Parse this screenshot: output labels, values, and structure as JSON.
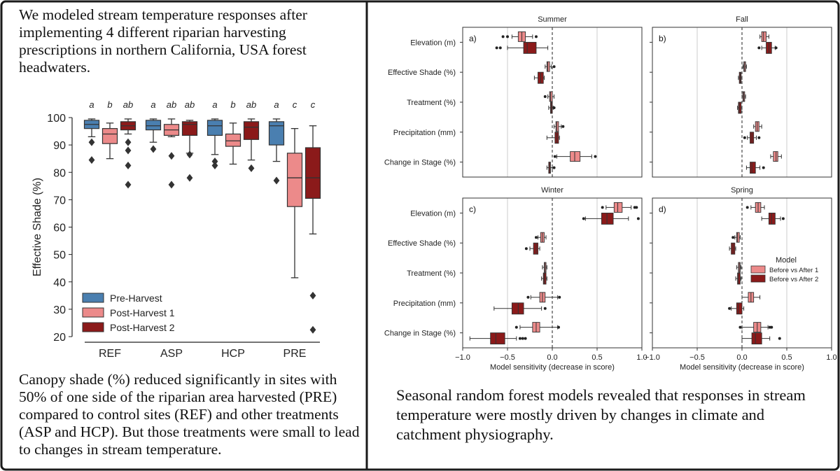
{
  "intro_text": "We modeled stream temperature responses after implementing 4 different riparian harvesting prescriptions in northern California, USA forest headwaters.",
  "left_caption": "Canopy shade (%) reduced significantly in sites with 50% of one side of the riparian area harvested (PRE) compared to control sites (REF) and other treatments (ASP and HCP). But those treatments were small to lead to changes in stream temperature.",
  "right_caption": "Seasonal random forest models revealed that responses in stream temperature were mostly driven by changes in climate and catchment physiography.",
  "colors": {
    "border": "#1a1a1a",
    "pre_harvest": "#4a7fb0",
    "post_harvest_1": "#ec8a8a",
    "post_harvest_2": "#8b1a1a",
    "median_line": "#333333",
    "grid": "#cccccc"
  },
  "chart_data": [
    {
      "type": "box",
      "ylabel": "Effective Shade (%)",
      "xlabel": "",
      "ylim": [
        20,
        100
      ],
      "yticks": [
        20,
        30,
        40,
        50,
        60,
        70,
        80,
        90,
        100
      ],
      "categories": [
        "REF",
        "ASP",
        "HCP",
        "PRE"
      ],
      "legend_position": "lower-left",
      "series_names": [
        "Pre-Harvest",
        "Post-Harvest 1",
        "Post-Harvest 2"
      ],
      "significance_letters": [
        [
          "a",
          "b",
          "ab"
        ],
        [
          "a",
          "ab",
          "ab"
        ],
        [
          "a",
          "b",
          "ab"
        ],
        [
          "a",
          "c",
          "c"
        ]
      ],
      "boxes": [
        [
          {
            "min": 93,
            "q1": 96,
            "median": 97.5,
            "q3": 99,
            "max": 99.5,
            "outliers": [
              91,
              84.5
            ]
          },
          {
            "min": 85,
            "q1": 90.5,
            "median": 94,
            "q3": 96,
            "max": 98,
            "outliers": []
          },
          {
            "min": 94,
            "q1": 95.5,
            "median": 97,
            "q3": 98.5,
            "max": 99.5,
            "outliers": [
              91,
              88,
              82.5,
              75.5
            ]
          }
        ],
        [
          {
            "min": 91,
            "q1": 95.5,
            "median": 97,
            "q3": 99,
            "max": 99.5,
            "outliers": [
              88.5
            ]
          },
          {
            "min": 93,
            "q1": 93.5,
            "median": 95.5,
            "q3": 97.5,
            "max": 99.5,
            "outliers": [
              86,
              75.5
            ]
          },
          {
            "min": 87,
            "q1": 93.5,
            "median": 97.5,
            "q3": 98.5,
            "max": 99,
            "outliers": [
              86.5,
              78
            ]
          }
        ],
        [
          {
            "min": 86.5,
            "q1": 93.5,
            "median": 97,
            "q3": 99,
            "max": 99.5,
            "outliers": [
              84,
              82.5
            ]
          },
          {
            "min": 83,
            "q1": 89.5,
            "median": 91.5,
            "q3": 94,
            "max": 98,
            "outliers": []
          },
          {
            "min": 84.5,
            "q1": 92,
            "median": 96.5,
            "q3": 98.5,
            "max": 99.5,
            "outliers": [
              81.5
            ]
          }
        ],
        [
          {
            "min": 84,
            "q1": 90,
            "median": 97,
            "q3": 98.5,
            "max": 99.5,
            "outliers": [
              77
            ]
          },
          {
            "min": 41.5,
            "q1": 67.5,
            "median": 78,
            "q3": 87,
            "max": 96,
            "outliers": []
          },
          {
            "min": 57.5,
            "q1": 70.5,
            "median": 78,
            "q3": 89,
            "max": 97,
            "outliers": [
              35,
              22.5
            ]
          }
        ]
      ]
    },
    {
      "type": "box",
      "xlabel": "Model sensitivity (decrease in score)",
      "xlim": [
        -1.0,
        1.0
      ],
      "xticks": [
        -1.0,
        -0.5,
        0.0,
        0.5,
        1.0
      ],
      "xticklabels": [
        "−1.0",
        "−0.5",
        "0.0",
        "0.5",
        "1.0"
      ],
      "features": [
        "Elevation (m)",
        "Effective Shade (%)",
        "Treatment (%)",
        "Precipitation (mm)",
        "Change in Stage (%)"
      ],
      "legend_title": "Model",
      "series_names": [
        "Before vs After 1",
        "Before vs After 2"
      ],
      "legend_position": "center-right of Spring panel",
      "panels": [
        {
          "title": "Summer",
          "letter": "a)",
          "boxes": [
            [
              {
                "min": -0.45,
                "q1": -0.38,
                "median": -0.34,
                "q3": -0.3,
                "max": -0.22,
                "outliers": [
                  -0.55,
                  -0.5,
                  -0.18
                ]
              },
              {
                "min": -0.5,
                "q1": -0.32,
                "median": -0.28,
                "q3": -0.18,
                "max": -0.05,
                "outliers": [
                  -0.62,
                  -0.58
                ]
              }
            ],
            [
              {
                "min": -0.08,
                "q1": -0.06,
                "median": -0.05,
                "q3": -0.03,
                "max": -0.01,
                "outliers": [
                  0.02
                ]
              },
              {
                "min": -0.2,
                "q1": -0.16,
                "median": -0.13,
                "q3": -0.1,
                "max": -0.09,
                "outliers": []
              }
            ],
            [
              {
                "min": -0.05,
                "q1": -0.03,
                "median": -0.02,
                "q3": 0.0,
                "max": 0.02,
                "outliers": [
                  -0.08
                ]
              },
              {
                "min": -0.04,
                "q1": -0.02,
                "median": -0.01,
                "q3": 0.0,
                "max": 0.01,
                "outliers": [
                  0.02
                ]
              }
            ],
            [
              {
                "min": 0.02,
                "q1": 0.04,
                "median": 0.05,
                "q3": 0.07,
                "max": 0.1,
                "outliers": [
                  0.12
                ]
              },
              {
                "min": -0.06,
                "q1": 0.03,
                "median": 0.05,
                "q3": 0.07,
                "max": 0.08,
                "outliers": []
              }
            ],
            [
              {
                "min": 0.05,
                "q1": 0.2,
                "median": 0.25,
                "q3": 0.31,
                "max": 0.44,
                "outliers": [
                  0.03,
                  0.48
                ]
              },
              {
                "min": -0.06,
                "q1": -0.04,
                "median": -0.03,
                "q3": -0.02,
                "max": 0.0,
                "outliers": [
                  0.02
                ]
              }
            ]
          ]
        },
        {
          "title": "Fall",
          "letter": "b)",
          "boxes": [
            [
              {
                "min": 0.2,
                "q1": 0.22,
                "median": 0.24,
                "q3": 0.27,
                "max": 0.3,
                "outliers": []
              },
              {
                "min": 0.22,
                "q1": 0.27,
                "median": 0.3,
                "q3": 0.33,
                "max": 0.37,
                "outliers": [
                  0.19,
                  0.38
                ]
              }
            ],
            [
              {
                "min": 0.01,
                "q1": 0.02,
                "median": 0.03,
                "q3": 0.04,
                "max": 0.05,
                "outliers": []
              },
              {
                "min": -0.04,
                "q1": -0.03,
                "median": -0.02,
                "q3": -0.01,
                "max": 0.0,
                "outliers": []
              }
            ],
            [
              {
                "min": 0.0,
                "q1": 0.01,
                "median": 0.02,
                "q3": 0.03,
                "max": 0.04,
                "outliers": []
              },
              {
                "min": -0.05,
                "q1": -0.04,
                "median": -0.03,
                "q3": -0.01,
                "max": 0.0,
                "outliers": []
              }
            ],
            [
              {
                "min": 0.13,
                "q1": 0.15,
                "median": 0.17,
                "q3": 0.19,
                "max": 0.22,
                "outliers": []
              },
              {
                "min": 0.06,
                "q1": 0.09,
                "median": 0.11,
                "q3": 0.13,
                "max": 0.16,
                "outliers": [
                  0.03,
                  0.19
                ]
              }
            ],
            [
              {
                "min": 0.32,
                "q1": 0.35,
                "median": 0.38,
                "q3": 0.4,
                "max": 0.44,
                "outliers": []
              },
              {
                "min": 0.05,
                "q1": 0.09,
                "median": 0.11,
                "q3": 0.15,
                "max": 0.2,
                "outliers": [
                  0.24
                ]
              }
            ]
          ]
        },
        {
          "title": "Winter",
          "letter": "c)",
          "boxes": [
            [
              {
                "min": 0.6,
                "q1": 0.69,
                "median": 0.73,
                "q3": 0.78,
                "max": 0.88,
                "outliers": [
                  0.56,
                  0.92,
                  0.94
                ]
              },
              {
                "min": 0.37,
                "q1": 0.55,
                "median": 0.61,
                "q3": 0.68,
                "max": 0.85,
                "outliers": [
                  0.35,
                  0.96
                ]
              }
            ],
            [
              {
                "min": -0.16,
                "q1": -0.13,
                "median": -0.11,
                "q3": -0.09,
                "max": -0.07,
                "outliers": [
                  -0.18
                ]
              },
              {
                "min": -0.25,
                "q1": -0.21,
                "median": -0.18,
                "q3": -0.16,
                "max": -0.14,
                "outliers": [
                  -0.29
                ]
              }
            ],
            [
              {
                "min": -0.11,
                "q1": -0.09,
                "median": -0.08,
                "q3": -0.07,
                "max": -0.06,
                "outliers": []
              },
              {
                "min": -0.12,
                "q1": -0.1,
                "median": -0.09,
                "q3": -0.07,
                "max": -0.06,
                "outliers": []
              }
            ],
            [
              {
                "min": -0.24,
                "q1": -0.14,
                "median": -0.11,
                "q3": -0.08,
                "max": 0.06,
                "outliers": [
                  -0.27,
                  0.08
                ]
              },
              {
                "min": -0.65,
                "q1": -0.45,
                "median": -0.38,
                "q3": -0.32,
                "max": -0.12,
                "outliers": [
                  -0.08
                ]
              }
            ],
            [
              {
                "min": -0.36,
                "q1": -0.22,
                "median": -0.18,
                "q3": -0.14,
                "max": 0.06,
                "outliers": [
                  -0.4,
                  0.07
                ]
              },
              {
                "min": -0.92,
                "q1": -0.69,
                "median": -0.63,
                "q3": -0.53,
                "max": -0.4,
                "outliers": [
                  -0.36,
                  -0.33,
                  -0.3
                ]
              }
            ]
          ]
        },
        {
          "title": "Spring",
          "letter": "d)",
          "boxes": [
            [
              {
                "min": 0.1,
                "q1": 0.15,
                "median": 0.18,
                "q3": 0.21,
                "max": 0.25,
                "outliers": [
                  0.06
                ]
              },
              {
                "min": 0.22,
                "q1": 0.3,
                "median": 0.33,
                "q3": 0.37,
                "max": 0.43,
                "outliers": [
                  0.46
                ]
              }
            ],
            [
              {
                "min": -0.08,
                "q1": -0.06,
                "median": -0.05,
                "q3": -0.03,
                "max": -0.02,
                "outliers": [
                  -0.1
                ]
              },
              {
                "min": -0.14,
                "q1": -0.12,
                "median": -0.1,
                "q3": -0.08,
                "max": -0.07,
                "outliers": []
              }
            ],
            [
              {
                "min": -0.06,
                "q1": -0.04,
                "median": -0.03,
                "q3": -0.02,
                "max": -0.01,
                "outliers": []
              },
              {
                "min": -0.07,
                "q1": -0.05,
                "median": -0.04,
                "q3": -0.02,
                "max": -0.01,
                "outliers": []
              }
            ],
            [
              {
                "min": 0.0,
                "q1": 0.07,
                "median": 0.1,
                "q3": 0.13,
                "max": 0.2,
                "outliers": []
              },
              {
                "min": -0.12,
                "q1": -0.06,
                "median": -0.04,
                "q3": 0.0,
                "max": 0.02,
                "outliers": [
                  -0.14
                ]
              }
            ],
            [
              {
                "min": 0.0,
                "q1": 0.13,
                "median": 0.17,
                "q3": 0.21,
                "max": 0.29,
                "outliers": [
                  -0.02,
                  0.31,
                  0.33
                ]
              },
              {
                "min": 0.0,
                "q1": 0.11,
                "median": 0.15,
                "q3": 0.22,
                "max": 0.31,
                "outliers": [
                  0.42
                ]
              }
            ]
          ]
        }
      ]
    }
  ]
}
